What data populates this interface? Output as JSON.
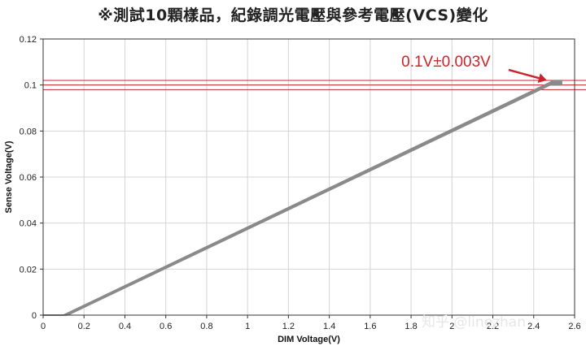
{
  "page": {
    "title": "※測試10顆樣品，紀錄調光電壓與參考電壓(VCS)變化"
  },
  "chart_data": {
    "type": "line",
    "title": "",
    "xlabel": "DIM Voltage(V)",
    "ylabel": "Sense Voltage(V)",
    "xlim": [
      0,
      2.6
    ],
    "ylim": [
      0,
      0.12
    ],
    "x_ticks": [
      0,
      0.2,
      0.4,
      0.6,
      0.8,
      1,
      1.2,
      1.4,
      1.6,
      1.8,
      2,
      2.2,
      2.4,
      2.6
    ],
    "x_tick_labels": [
      "0",
      "0.2",
      "0.4",
      "0.6",
      "0.8",
      "1",
      "1.2",
      "1.4",
      "1.6",
      "1.8",
      "2",
      "2.2",
      "2.4",
      "2.6"
    ],
    "y_ticks": [
      0,
      0.02,
      0.04,
      0.06,
      0.08,
      0.1,
      0.12
    ],
    "y_tick_labels": [
      "0",
      "0.02",
      "0.04",
      "0.06",
      "0.08",
      "0.1",
      "0.12"
    ],
    "grid": true,
    "legend": "none",
    "series": [
      {
        "x": [
          0,
          0.1,
          2.48,
          2.54
        ],
        "y": [
          0,
          0,
          0.101,
          0.101
        ]
      },
      {
        "x": [
          0,
          0.11,
          2.48,
          2.54
        ],
        "y": [
          0,
          0,
          0.1005,
          0.1005
        ]
      },
      {
        "x": [
          0,
          0.1,
          2.49,
          2.54
        ],
        "y": [
          0,
          0,
          0.1015,
          0.1015
        ]
      },
      {
        "x": [
          0,
          0.12,
          2.48,
          2.54
        ],
        "y": [
          0,
          0,
          0.1,
          0.1
        ]
      },
      {
        "x": [
          0,
          0.1,
          2.5,
          2.54
        ],
        "y": [
          0,
          0,
          0.102,
          0.102
        ]
      }
    ],
    "reference_lines": [
      0.098,
      0.1,
      0.102
    ],
    "annotation": {
      "text": "0.1V±0.003V",
      "x": 2.48,
      "y": 0.101
    },
    "colors": {
      "series": "#8a8a8a",
      "reference": "#c9252b",
      "grid": "#d4d4d4"
    }
  },
  "watermark": {
    "text": "知乎 @linezhan"
  }
}
